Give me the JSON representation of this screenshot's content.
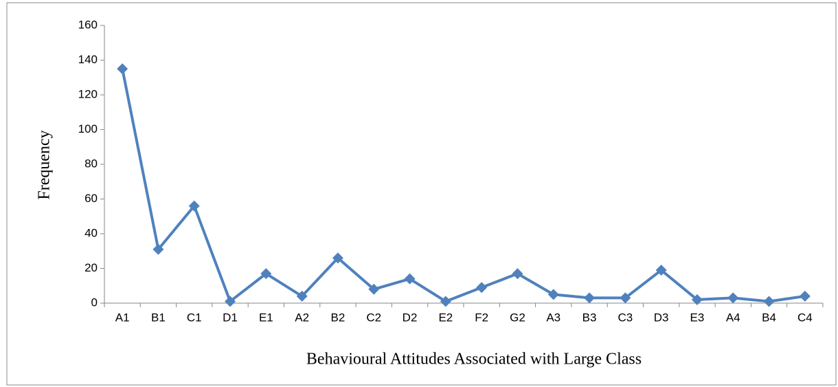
{
  "chart_data": {
    "type": "line",
    "y_label": "Frequency",
    "x_label": "Behavioural Attitudes Associated with Large Class",
    "categories": [
      "A1",
      "B1",
      "C1",
      "D1",
      "E1",
      "A2",
      "B2",
      "C2",
      "D2",
      "E2",
      "F2",
      "G2",
      "A3",
      "B3",
      "C3",
      "D3",
      "E3",
      "A4",
      "B4",
      "C4"
    ],
    "series": [
      {
        "name": "Frequency",
        "color": "#4f81bd",
        "values": [
          135,
          31,
          56,
          1,
          17,
          4,
          26,
          8,
          14,
          1,
          9,
          17,
          5,
          3,
          3,
          19,
          2,
          3,
          1,
          4
        ]
      }
    ],
    "ylim": [
      0,
      160
    ],
    "yticks": [
      0,
      20,
      40,
      60,
      80,
      100,
      120,
      140,
      160
    ],
    "grid": false,
    "legend": false
  }
}
